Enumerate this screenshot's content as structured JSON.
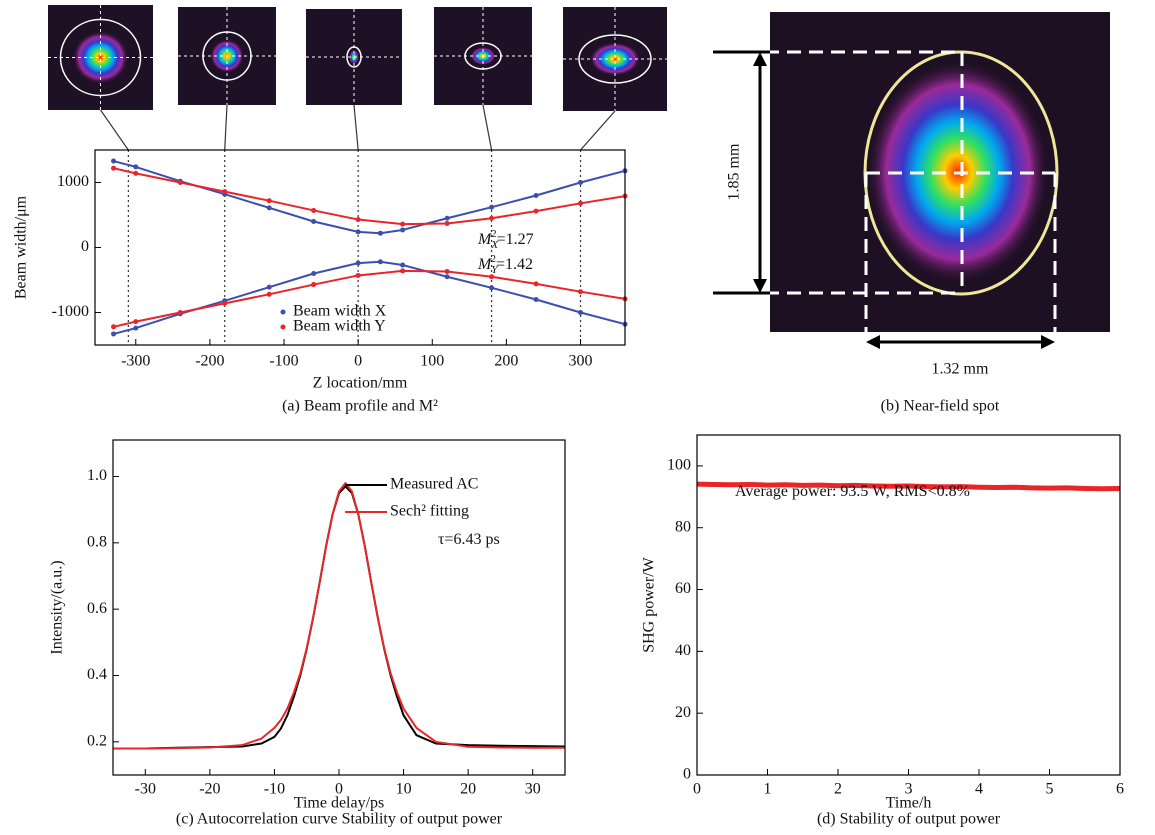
{
  "chart_data": [
    {
      "type": "line",
      "xlabel": "Z location/mm",
      "ylabel": "Beam width/μm",
      "caption": "(a) Beam profile and M²",
      "xlim": [
        -355,
        360
      ],
      "ylim": [
        -1500,
        1500
      ],
      "xticks": [
        -300,
        -200,
        -100,
        0,
        100,
        200,
        300
      ],
      "yticks": [
        -1000,
        0,
        1000
      ],
      "markers": true,
      "legend": "lower center",
      "reference_lines_x": [
        -310,
        -180,
        0,
        180,
        300
      ],
      "annotations": [
        {
          "symbol": "M",
          "sub": "X",
          "sup": "2",
          "text": "=1.27"
        },
        {
          "symbol": "M",
          "sub": "Y",
          "sup": "2",
          "text": "=1.42"
        }
      ],
      "series": [
        {
          "name": "Beam width X",
          "color": "#3a4fb0",
          "x": [
            -330,
            -300,
            -240,
            -180,
            -120,
            -60,
            0,
            30,
            60,
            120,
            180,
            240,
            300,
            360
          ],
          "values": [
            1330,
            1240,
            1020,
            820,
            610,
            400,
            240,
            220,
            270,
            450,
            620,
            800,
            1000,
            1180
          ],
          "values_lower": [
            -1330,
            -1240,
            -1020,
            -820,
            -610,
            -400,
            -240,
            -220,
            -270,
            -450,
            -620,
            -800,
            -1000,
            -1180
          ]
        },
        {
          "name": "Beam width Y",
          "color": "#e8262a",
          "x": [
            -330,
            -300,
            -240,
            -180,
            -120,
            -60,
            0,
            60,
            120,
            180,
            240,
            300,
            360
          ],
          "values": [
            1220,
            1140,
            1000,
            860,
            720,
            570,
            430,
            360,
            370,
            450,
            560,
            680,
            790
          ],
          "values_lower": [
            -1220,
            -1140,
            -1000,
            -860,
            -720,
            -570,
            -430,
            -360,
            -370,
            -450,
            -560,
            -680,
            -790
          ]
        }
      ]
    },
    {
      "type": "line",
      "xlabel": "Time delay/ps",
      "ylabel": "Intensity/(a.u.)",
      "caption": "(c) Autocorrelation curve Stability of output power",
      "xlim": [
        -35,
        35
      ],
      "ylim": [
        0.1,
        1.11
      ],
      "xticks": [
        -30,
        -20,
        -10,
        0,
        10,
        20,
        30
      ],
      "yticks": [
        0.2,
        0.4,
        0.6,
        0.8,
        {
          "value": 1,
          "label": "1.0"
        }
      ],
      "markers": false,
      "legend": "upper right",
      "annotations": [
        {
          "text": "τ=6.43 ps"
        }
      ],
      "series": [
        {
          "name": "Measured AC",
          "color": "#000000",
          "x": [
            -35,
            -30,
            -25,
            -20,
            -15,
            -12,
            -10,
            -9,
            -8,
            -7,
            -6,
            -5,
            -4,
            -3,
            -2,
            -1,
            0,
            1,
            2,
            3,
            4,
            5,
            6,
            7,
            8,
            9,
            10,
            12,
            15,
            20,
            25,
            30,
            35
          ],
          "values": [
            0.18,
            0.18,
            0.182,
            0.184,
            0.186,
            0.195,
            0.215,
            0.24,
            0.28,
            0.335,
            0.4,
            0.48,
            0.575,
            0.68,
            0.79,
            0.885,
            0.95,
            0.97,
            0.95,
            0.885,
            0.79,
            0.68,
            0.575,
            0.48,
            0.4,
            0.335,
            0.28,
            0.22,
            0.195,
            0.19,
            0.188,
            0.187,
            0.186
          ]
        },
        {
          "name": "Sech² fitting",
          "color": "#e8262a",
          "x": [
            -35,
            -30,
            -25,
            -20,
            -15,
            -12,
            -10,
            -9,
            -8,
            -7,
            -6,
            -5,
            -4,
            -3,
            -2,
            -1,
            0,
            1,
            2,
            3,
            4,
            5,
            6,
            7,
            8,
            9,
            10,
            12,
            15,
            20,
            25,
            30,
            35
          ],
          "values": [
            0.18,
            0.18,
            0.181,
            0.183,
            0.19,
            0.21,
            0.242,
            0.266,
            0.3,
            0.348,
            0.406,
            0.482,
            0.575,
            0.68,
            0.789,
            0.886,
            0.955,
            0.98,
            0.955,
            0.886,
            0.789,
            0.68,
            0.575,
            0.482,
            0.406,
            0.348,
            0.3,
            0.242,
            0.2,
            0.185,
            0.183,
            0.182,
            0.182
          ]
        }
      ]
    },
    {
      "type": "line",
      "xlabel": "Time/h",
      "ylabel": "SHG power/W",
      "caption": "(d) Stability of output power",
      "xlim": [
        0,
        6
      ],
      "ylim": [
        0,
        110
      ],
      "xticks": [
        0,
        1,
        2,
        3,
        4,
        5,
        6
      ],
      "yticks": [
        0,
        20,
        40,
        60,
        80,
        100
      ],
      "markers": false,
      "annotations": [
        {
          "text": "Average power: 93.5 W, RMS<0.8%"
        }
      ],
      "series": [
        {
          "color": "#e8262a",
          "x": [
            0,
            0.25,
            0.5,
            0.75,
            1,
            1.25,
            1.5,
            1.75,
            2,
            2.25,
            2.5,
            2.75,
            3,
            3.25,
            3.5,
            3.75,
            4,
            4.25,
            4.5,
            4.75,
            5,
            5.25,
            5.5,
            5.75,
            6
          ],
          "values": [
            94.1,
            94.0,
            93.9,
            94.0,
            93.8,
            93.9,
            93.7,
            93.8,
            93.6,
            93.7,
            93.5,
            93.4,
            93.5,
            93.3,
            93.2,
            93.3,
            93.1,
            93.0,
            93.1,
            92.9,
            92.8,
            92.9,
            92.7,
            92.6,
            92.7
          ]
        }
      ]
    }
  ],
  "near_field": {
    "height_label": "1.85 mm",
    "width_label": "1.32 mm",
    "caption": "(b) Near-field spot"
  }
}
